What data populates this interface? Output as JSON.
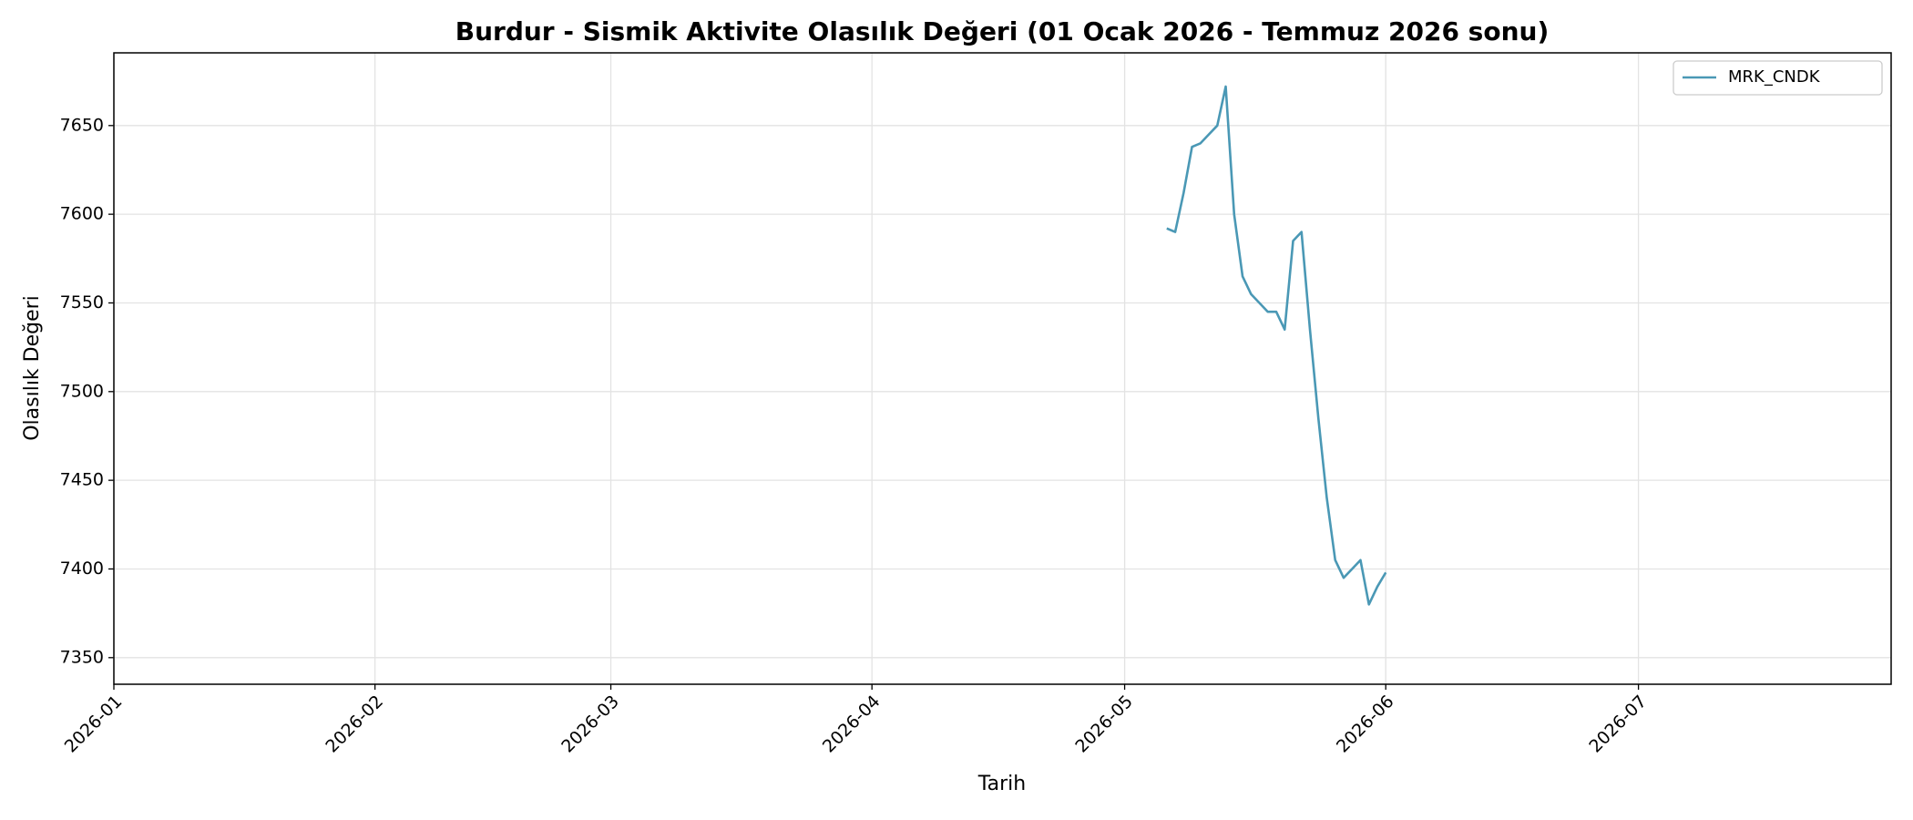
{
  "chart_data": {
    "type": "line",
    "title": "Burdur - Sismik Aktivite Olasılık Değeri (01 Ocak 2026 - Temmuz 2026 sonu)",
    "x_label": "Tarih",
    "y_label": "Olasılık Değeri",
    "xlim": [
      "2026-01-01",
      "2026-07-31"
    ],
    "xticks": [
      "2026-01",
      "2026-02",
      "2026-03",
      "2026-04",
      "2026-05",
      "2026-06",
      "2026-07"
    ],
    "ylim": [
      7335,
      7691
    ],
    "yticks": [
      7350,
      7400,
      7450,
      7500,
      7550,
      7600,
      7650
    ],
    "grid": true,
    "legend": "upper right",
    "series": [
      {
        "name": "MRK_CNDK",
        "color": "#4a98b5",
        "x": [
          "2026-05-06",
          "2026-05-07",
          "2026-05-08",
          "2026-05-09",
          "2026-05-10",
          "2026-05-11",
          "2026-05-12",
          "2026-05-13",
          "2026-05-14",
          "2026-05-15",
          "2026-05-16",
          "2026-05-17",
          "2026-05-18",
          "2026-05-19",
          "2026-05-20",
          "2026-05-21",
          "2026-05-22",
          "2026-05-23",
          "2026-05-24",
          "2026-05-25",
          "2026-05-26",
          "2026-05-27",
          "2026-05-28",
          "2026-05-29",
          "2026-05-30",
          "2026-05-31",
          "2026-06-01"
        ],
        "values": [
          7592,
          7590,
          7612,
          7638,
          7640,
          7645,
          7650,
          7672,
          7600,
          7565,
          7555,
          7550,
          7545,
          7545,
          7535,
          7585,
          7590,
          7535,
          7485,
          7440,
          7405,
          7395,
          7400,
          7405,
          7380,
          7390,
          7398
        ]
      }
    ]
  }
}
